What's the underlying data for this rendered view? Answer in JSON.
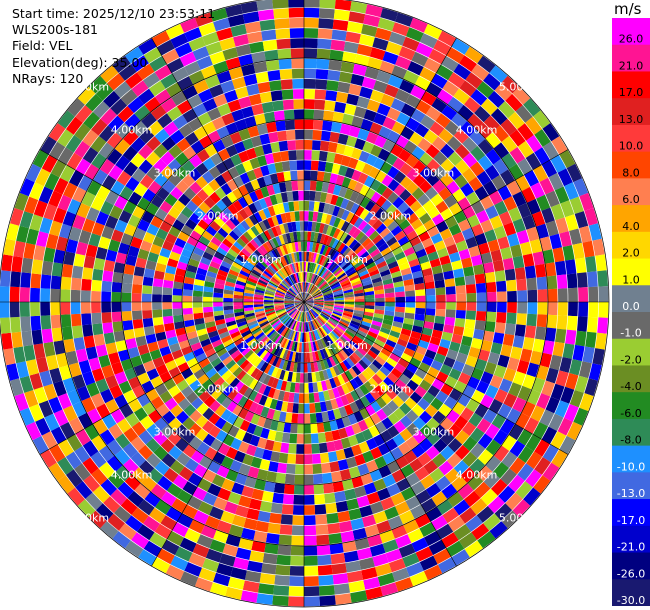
{
  "header": {
    "start_time": "Start time: 2025/12/10 23:53:11",
    "instrument": "WLS200s-181",
    "field": "Field: VEL",
    "elevation": "Elevation(deg): 35.00",
    "nrays": "NRays: 120"
  },
  "chart_data": {
    "type": "polar-ppi",
    "field": "VEL",
    "unit": "m/s",
    "n_rays": 120,
    "elevation_deg": 35.0,
    "range_rings_km": [
      1,
      2,
      3,
      4,
      5
    ],
    "range_ring_labels": [
      "1.00km",
      "2.00km",
      "3.00km",
      "4.00km",
      "5.00km"
    ],
    "colorbar": {
      "tick_values": [
        26.0,
        21.0,
        17.0,
        13.0,
        10.0,
        8.0,
        6.0,
        4.0,
        2.0,
        1.0,
        0.0,
        -1.0,
        -2.0,
        -4.0,
        -6.0,
        -8.0,
        -10.0,
        -13.0,
        -17.0,
        -21.0,
        -26.0,
        -30.0
      ],
      "tick_labels": [
        "26.0",
        "21.0",
        "17.0",
        "13.0",
        "10.0",
        "8.0",
        "6.0",
        "4.0",
        "2.0",
        "1.0",
        "0.0",
        "-1.0",
        "-2.0",
        "-4.0",
        "-6.0",
        "-8.0",
        "-10.0",
        "-13.0",
        "-17.0",
        "-21.0",
        "-26.0",
        "-30.0"
      ],
      "colors": [
        "#ff00ff",
        "#ff1493",
        "#ff0000",
        "#e02020",
        "#ff3a3a",
        "#ff4500",
        "#ff7f50",
        "#ffa500",
        "#ffd700",
        "#ffff00",
        "#708090",
        "#696969",
        "#9acd32",
        "#6b8e23",
        "#228b22",
        "#2e8b57",
        "#1e90ff",
        "#4169e1",
        "#0000ff",
        "#0000cd",
        "#000080",
        "#191970"
      ]
    }
  }
}
